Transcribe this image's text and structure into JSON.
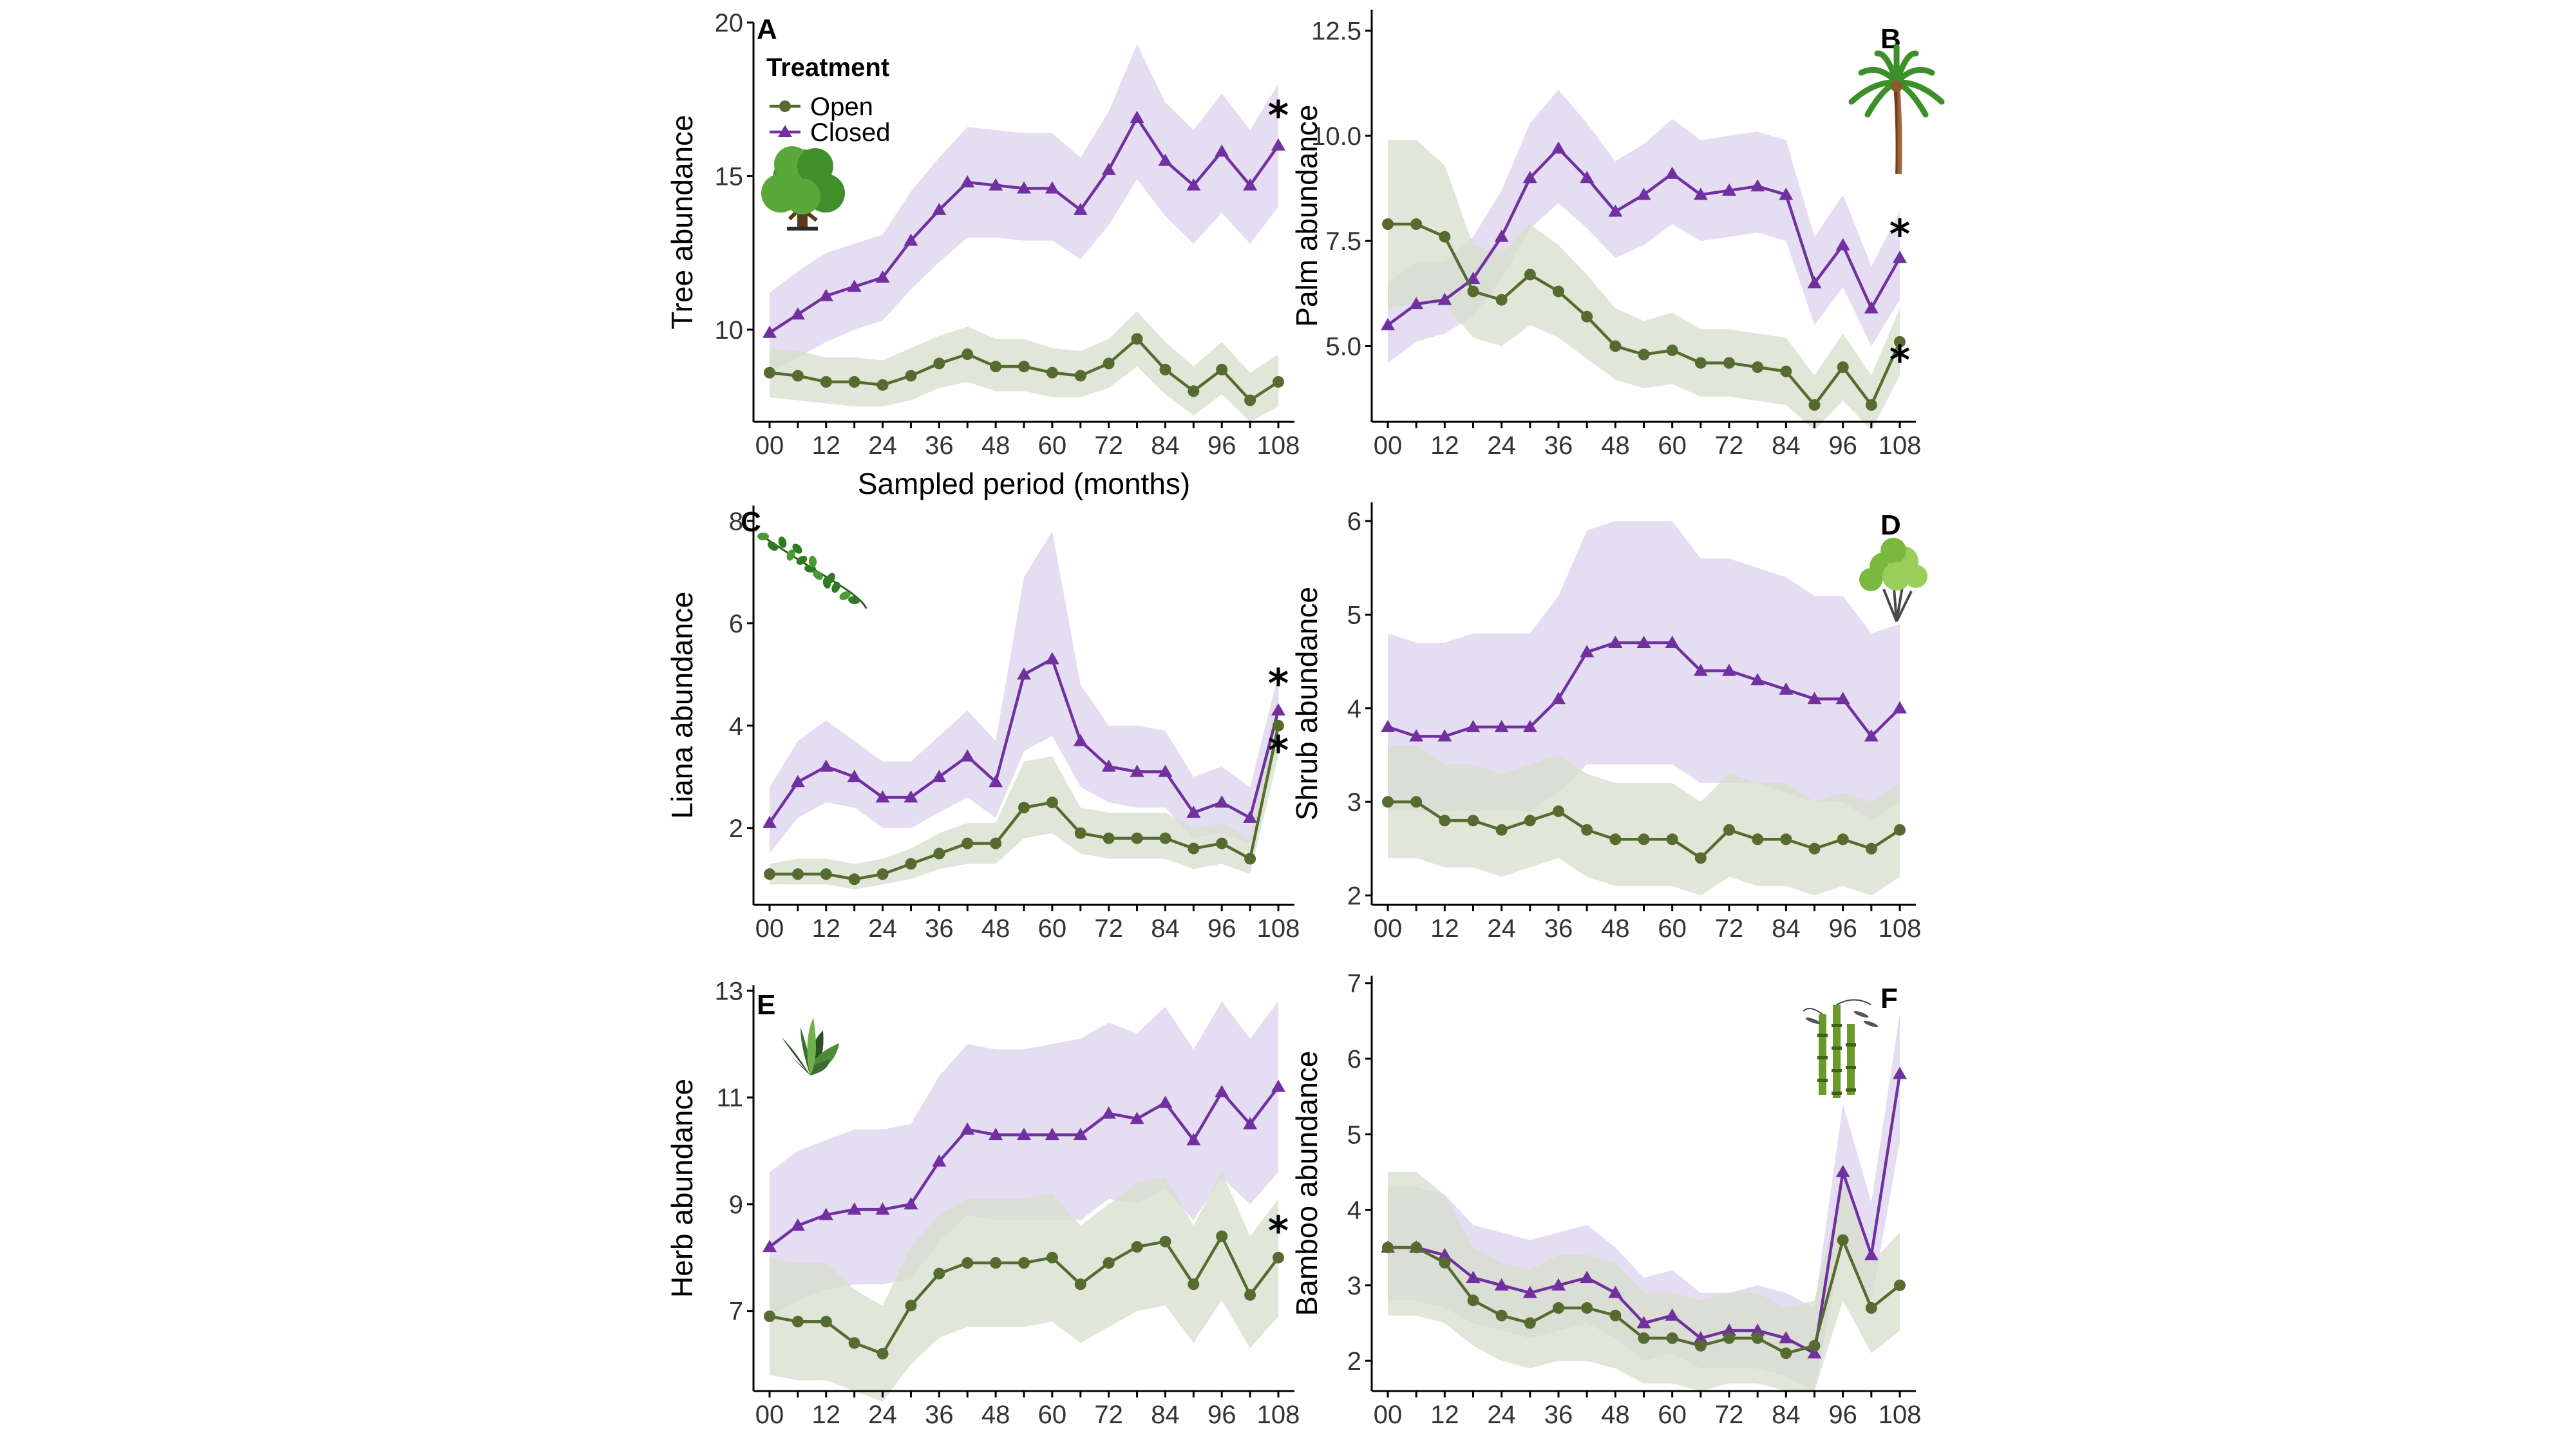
{
  "figure": {
    "background": "#ffffff"
  },
  "colors": {
    "open": "#556B2F",
    "closed": "#7030A0",
    "open_band": "#D6DDCB",
    "closed_band": "#DCD2EC",
    "axis": "#000000"
  },
  "legend": {
    "title": "Treatment",
    "items": [
      {
        "name": "Open",
        "marker": "circle"
      },
      {
        "name": "Closed",
        "marker": "triangle"
      }
    ],
    "placement": "top-left of panel A"
  },
  "icons": {
    "A": "tree-icon",
    "B": "palm-icon",
    "C": "liana-icon",
    "D": "shrub-icon",
    "E": "herb-icon",
    "F": "bamboo-icon"
  },
  "chart_data": [
    {
      "panel": "A",
      "type": "line",
      "ylabel": "Tree abundance",
      "xlabel": "Sampled period (months)",
      "ylim": [
        7,
        20
      ],
      "yticks": [
        10,
        15,
        20
      ],
      "xticks": [
        "00",
        "12",
        "24",
        "36",
        "48",
        "60",
        "72",
        "84",
        "96",
        "108"
      ],
      "x": [
        0,
        6,
        12,
        18,
        24,
        30,
        36,
        42,
        48,
        54,
        60,
        66,
        72,
        78,
        84,
        90,
        96,
        102,
        108
      ],
      "series": [
        {
          "name": "Closed",
          "values": [
            9.9,
            10.5,
            11.1,
            11.4,
            11.7,
            12.9,
            13.9,
            14.8,
            14.7,
            14.6,
            14.6,
            13.9,
            15.2,
            16.9,
            15.5,
            14.7,
            15.8,
            14.7,
            16.0
          ],
          "lower": [
            8.6,
            9.1,
            9.6,
            10.0,
            10.3,
            11.3,
            12.2,
            13.0,
            13.0,
            12.9,
            12.9,
            12.3,
            13.4,
            14.9,
            13.7,
            12.8,
            13.8,
            12.8,
            14.0
          ],
          "upper": [
            11.2,
            11.9,
            12.5,
            12.8,
            13.1,
            14.5,
            15.6,
            16.6,
            16.5,
            16.4,
            16.4,
            15.6,
            17.1,
            19.3,
            17.4,
            16.5,
            17.7,
            16.5,
            18.0
          ],
          "significant": true
        },
        {
          "name": "Open",
          "values": [
            8.6,
            8.5,
            8.3,
            8.3,
            8.2,
            8.5,
            8.9,
            9.2,
            8.8,
            8.8,
            8.6,
            8.5,
            8.9,
            9.7,
            8.7,
            8.0,
            8.7,
            7.7,
            8.3
          ],
          "lower": [
            7.8,
            7.7,
            7.6,
            7.5,
            7.5,
            7.7,
            8.1,
            8.3,
            8.0,
            8.0,
            7.8,
            7.8,
            8.1,
            8.8,
            7.9,
            7.2,
            7.9,
            7.0,
            7.5
          ],
          "upper": [
            9.4,
            9.3,
            9.1,
            9.1,
            9.0,
            9.4,
            9.8,
            10.1,
            9.7,
            9.7,
            9.4,
            9.3,
            9.7,
            10.6,
            9.6,
            8.8,
            9.6,
            8.6,
            9.2
          ],
          "significant": false
        }
      ]
    },
    {
      "panel": "B",
      "type": "line",
      "ylabel": "Palm abundance",
      "xlabel": "",
      "ylim": [
        3.2,
        13.0
      ],
      "yticks": [
        5.0,
        7.5,
        10.0,
        12.5
      ],
      "ytick_labels": [
        "5.0",
        "7.5",
        "10.0",
        "12.5"
      ],
      "xticks": [
        "00",
        "12",
        "24",
        "36",
        "48",
        "60",
        "72",
        "84",
        "96",
        "108"
      ],
      "x": [
        0,
        6,
        12,
        18,
        24,
        30,
        36,
        42,
        48,
        54,
        60,
        66,
        72,
        78,
        84,
        90,
        96,
        102,
        108
      ],
      "series": [
        {
          "name": "Closed",
          "values": [
            5.5,
            6.0,
            6.1,
            6.6,
            7.6,
            9.0,
            9.7,
            9.0,
            8.2,
            8.6,
            9.1,
            8.6,
            8.7,
            8.8,
            8.6,
            6.5,
            7.4,
            5.9,
            7.1
          ],
          "lower": [
            4.6,
            5.1,
            5.3,
            5.7,
            6.6,
            7.8,
            8.4,
            7.8,
            7.1,
            7.4,
            7.9,
            7.5,
            7.6,
            7.7,
            7.5,
            5.5,
            6.4,
            5.0,
            6.1
          ],
          "upper": [
            6.5,
            7.0,
            7.0,
            7.6,
            8.7,
            10.3,
            11.1,
            10.3,
            9.4,
            9.8,
            10.4,
            9.9,
            10.0,
            10.1,
            9.9,
            7.6,
            8.6,
            6.9,
            8.2
          ],
          "significant": true
        },
        {
          "name": "Open",
          "values": [
            7.9,
            7.9,
            7.6,
            6.3,
            6.1,
            6.7,
            6.3,
            5.7,
            5.0,
            4.8,
            4.9,
            4.6,
            4.6,
            4.5,
            4.4,
            3.6,
            4.5,
            3.6,
            5.1
          ],
          "lower": [
            5.9,
            6.0,
            6.0,
            5.2,
            5.0,
            5.5,
            5.2,
            4.7,
            4.2,
            4.0,
            4.1,
            3.8,
            3.8,
            3.7,
            3.6,
            3.0,
            3.7,
            3.0,
            4.3
          ],
          "upper": [
            9.9,
            9.9,
            9.3,
            7.4,
            7.2,
            7.9,
            7.4,
            6.7,
            5.9,
            5.6,
            5.8,
            5.4,
            5.4,
            5.3,
            5.2,
            4.3,
            5.3,
            4.3,
            5.9
          ],
          "significant": true
        }
      ]
    },
    {
      "panel": "C",
      "type": "line",
      "ylabel": "Liana abundance",
      "xlabel": "",
      "ylim": [
        0.5,
        8.3
      ],
      "yticks": [
        2,
        4,
        6,
        8
      ],
      "xticks": [
        "00",
        "12",
        "24",
        "36",
        "48",
        "60",
        "72",
        "84",
        "96",
        "108"
      ],
      "x": [
        0,
        6,
        12,
        18,
        24,
        30,
        36,
        42,
        48,
        54,
        60,
        66,
        72,
        78,
        84,
        90,
        96,
        102,
        108
      ],
      "series": [
        {
          "name": "Closed",
          "values": [
            2.1,
            2.9,
            3.2,
            3.0,
            2.6,
            2.6,
            3.0,
            3.4,
            2.9,
            5.0,
            5.3,
            3.7,
            3.2,
            3.1,
            3.1,
            2.3,
            2.5,
            2.2,
            4.3
          ],
          "lower": [
            1.5,
            2.2,
            2.5,
            2.4,
            2.0,
            2.0,
            2.3,
            2.6,
            2.2,
            3.5,
            3.8,
            2.8,
            2.5,
            2.4,
            2.4,
            1.8,
            1.9,
            1.7,
            3.6
          ],
          "upper": [
            2.8,
            3.7,
            4.1,
            3.7,
            3.3,
            3.3,
            3.8,
            4.3,
            3.7,
            6.9,
            7.8,
            4.8,
            4.0,
            4.0,
            3.9,
            3.0,
            3.2,
            2.8,
            5.0
          ],
          "significant": true
        },
        {
          "name": "Open",
          "values": [
            1.1,
            1.1,
            1.1,
            1.0,
            1.1,
            1.3,
            1.5,
            1.7,
            1.7,
            2.4,
            2.5,
            1.9,
            1.8,
            1.8,
            1.8,
            1.6,
            1.7,
            1.4,
            4.0
          ],
          "lower": [
            0.9,
            0.9,
            0.9,
            0.8,
            0.9,
            1.0,
            1.2,
            1.3,
            1.3,
            1.8,
            1.9,
            1.5,
            1.4,
            1.4,
            1.4,
            1.2,
            1.3,
            1.1,
            3.4
          ],
          "upper": [
            1.3,
            1.4,
            1.4,
            1.3,
            1.4,
            1.6,
            1.9,
            2.1,
            2.1,
            3.3,
            3.4,
            2.4,
            2.3,
            2.3,
            2.3,
            2.0,
            2.1,
            1.8,
            4.7
          ],
          "significant": true
        }
      ]
    },
    {
      "panel": "D",
      "type": "line",
      "ylabel": "Shrub abundance",
      "xlabel": "",
      "ylim": [
        1.9,
        6.2
      ],
      "yticks": [
        2,
        3,
        4,
        5,
        6
      ],
      "xticks": [
        "00",
        "12",
        "24",
        "36",
        "48",
        "60",
        "72",
        "84",
        "96",
        "108"
      ],
      "x": [
        0,
        6,
        12,
        18,
        24,
        30,
        36,
        42,
        48,
        54,
        60,
        66,
        72,
        78,
        84,
        90,
        96,
        102,
        108
      ],
      "series": [
        {
          "name": "Closed",
          "values": [
            3.8,
            3.7,
            3.7,
            3.8,
            3.8,
            3.8,
            4.1,
            4.6,
            4.7,
            4.7,
            4.7,
            4.4,
            4.4,
            4.3,
            4.2,
            4.1,
            4.1,
            3.7,
            4.0
          ],
          "lower": [
            2.9,
            2.9,
            2.9,
            2.9,
            2.9,
            2.9,
            3.1,
            3.4,
            3.4,
            3.4,
            3.4,
            3.2,
            3.2,
            3.2,
            3.1,
            3.0,
            3.0,
            2.8,
            3.0
          ],
          "upper": [
            4.8,
            4.7,
            4.7,
            4.8,
            4.8,
            4.8,
            5.2,
            5.9,
            6.0,
            6.0,
            6.0,
            5.6,
            5.6,
            5.5,
            5.4,
            5.2,
            5.2,
            4.8,
            4.9
          ],
          "significant": false
        },
        {
          "name": "Open",
          "values": [
            3.0,
            3.0,
            2.8,
            2.8,
            2.7,
            2.8,
            2.9,
            2.7,
            2.6,
            2.6,
            2.6,
            2.4,
            2.7,
            2.6,
            2.6,
            2.5,
            2.6,
            2.5,
            2.7
          ],
          "lower": [
            2.4,
            2.4,
            2.3,
            2.3,
            2.2,
            2.3,
            2.4,
            2.2,
            2.1,
            2.1,
            2.1,
            2.0,
            2.2,
            2.1,
            2.1,
            2.0,
            2.1,
            2.0,
            2.2
          ],
          "upper": [
            3.6,
            3.6,
            3.4,
            3.4,
            3.3,
            3.4,
            3.5,
            3.3,
            3.2,
            3.2,
            3.2,
            3.0,
            3.3,
            3.2,
            3.2,
            3.0,
            3.1,
            3.0,
            3.2
          ],
          "significant": false
        }
      ]
    },
    {
      "panel": "E",
      "type": "line",
      "ylabel": "Herb abundance",
      "xlabel": "",
      "ylim": [
        5.5,
        13.1
      ],
      "yticks": [
        7,
        9,
        11,
        13
      ],
      "xticks": [
        "00",
        "12",
        "24",
        "36",
        "48",
        "60",
        "72",
        "84",
        "96",
        "108"
      ],
      "x": [
        0,
        6,
        12,
        18,
        24,
        30,
        36,
        42,
        48,
        54,
        60,
        66,
        72,
        78,
        84,
        90,
        96,
        102,
        108
      ],
      "series": [
        {
          "name": "Closed",
          "values": [
            8.2,
            8.6,
            8.8,
            8.9,
            8.9,
            9.0,
            9.8,
            10.4,
            10.3,
            10.3,
            10.3,
            10.3,
            10.7,
            10.6,
            10.9,
            10.2,
            11.1,
            10.5,
            11.2
          ],
          "lower": [
            6.9,
            7.2,
            7.4,
            7.5,
            7.5,
            7.6,
            8.3,
            8.8,
            8.7,
            8.7,
            8.7,
            8.7,
            9.1,
            9.0,
            9.3,
            8.7,
            9.5,
            9.0,
            9.6
          ],
          "upper": [
            9.6,
            10.0,
            10.2,
            10.4,
            10.4,
            10.5,
            11.4,
            12.0,
            11.9,
            11.9,
            12.0,
            12.1,
            12.4,
            12.2,
            12.7,
            11.9,
            12.8,
            12.1,
            12.8
          ],
          "significant": false
        },
        {
          "name": "Open",
          "values": [
            6.9,
            6.8,
            6.8,
            6.4,
            6.2,
            7.1,
            7.7,
            7.9,
            7.9,
            7.9,
            8.0,
            7.5,
            7.9,
            8.2,
            8.3,
            7.5,
            8.4,
            7.3,
            8.0
          ],
          "lower": [
            5.8,
            5.7,
            5.7,
            5.5,
            5.3,
            6.0,
            6.5,
            6.7,
            6.7,
            6.7,
            6.8,
            6.4,
            6.7,
            7.0,
            7.1,
            6.4,
            7.2,
            6.3,
            6.9
          ],
          "upper": [
            8.0,
            7.9,
            7.9,
            7.4,
            7.1,
            8.2,
            8.8,
            9.1,
            9.1,
            9.1,
            9.2,
            8.6,
            9.0,
            9.4,
            9.5,
            8.6,
            9.6,
            8.4,
            9.1
          ],
          "significant": true
        }
      ]
    },
    {
      "panel": "F",
      "type": "line",
      "ylabel": "Bamboo abundance",
      "xlabel": "",
      "ylim": [
        1.6,
        7.1
      ],
      "yticks": [
        2,
        3,
        4,
        5,
        6,
        7
      ],
      "xticks": [
        "00",
        "12",
        "24",
        "36",
        "48",
        "60",
        "72",
        "84",
        "96",
        "108"
      ],
      "x": [
        0,
        6,
        12,
        18,
        24,
        30,
        36,
        42,
        48,
        54,
        60,
        66,
        72,
        78,
        84,
        90,
        96,
        102,
        108
      ],
      "series": [
        {
          "name": "Closed",
          "values": [
            3.5,
            3.5,
            3.4,
            3.1,
            3.0,
            2.9,
            3.0,
            3.1,
            2.9,
            2.5,
            2.6,
            2.3,
            2.4,
            2.4,
            2.3,
            2.1,
            4.5,
            3.4,
            5.8
          ],
          "lower": [
            2.8,
            2.8,
            2.7,
            2.5,
            2.4,
            2.3,
            2.4,
            2.5,
            2.3,
            2.0,
            2.1,
            1.9,
            1.9,
            1.9,
            1.8,
            1.6,
            3.6,
            2.8,
            4.9
          ],
          "upper": [
            4.3,
            4.3,
            4.2,
            3.8,
            3.7,
            3.6,
            3.7,
            3.8,
            3.5,
            3.1,
            3.2,
            2.9,
            2.9,
            3.0,
            2.9,
            2.7,
            5.4,
            4.1,
            6.6
          ],
          "significant": false
        },
        {
          "name": "Open",
          "values": [
            3.5,
            3.5,
            3.3,
            2.8,
            2.6,
            2.5,
            2.7,
            2.7,
            2.6,
            2.3,
            2.3,
            2.2,
            2.3,
            2.3,
            2.1,
            2.2,
            3.6,
            2.7,
            3.0
          ],
          "lower": [
            2.6,
            2.6,
            2.5,
            2.2,
            2.0,
            1.9,
            2.0,
            2.0,
            1.9,
            1.7,
            1.7,
            1.6,
            1.7,
            1.7,
            1.6,
            1.6,
            2.8,
            2.1,
            2.4
          ],
          "upper": [
            4.5,
            4.5,
            4.2,
            3.5,
            3.3,
            3.2,
            3.4,
            3.4,
            3.3,
            2.9,
            2.9,
            2.8,
            2.9,
            2.9,
            2.7,
            2.8,
            4.4,
            3.3,
            3.7
          ],
          "significant": false
        }
      ]
    }
  ]
}
